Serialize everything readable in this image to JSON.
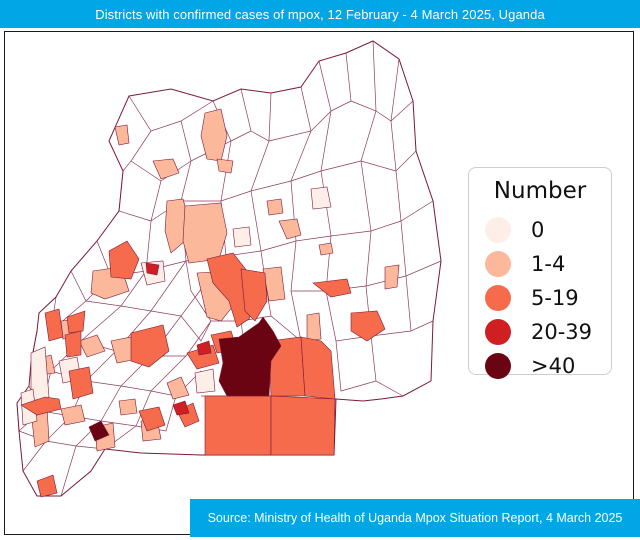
{
  "header": {
    "title": "Districts with confirmed cases of mpox, 12 February - 4 March 2025, Uganda"
  },
  "legend": {
    "title": "Number",
    "items": [
      {
        "label": "0",
        "color": "#fdeee8"
      },
      {
        "label": "1-4",
        "color": "#fcb89b"
      },
      {
        "label": "5-19",
        "color": "#f56b4b"
      },
      {
        "label": "20-39",
        "color": "#cf1f22"
      },
      {
        "label": ">40",
        "color": "#6a0412"
      }
    ]
  },
  "colors": {
    "banner": "#00a6e6",
    "no_data": "#ffffff",
    "border": "#7a1a3a"
  },
  "source": {
    "text": "Source: Ministry of Health of Uganda Mpox Situation Report, 4 March 2025"
  }
}
